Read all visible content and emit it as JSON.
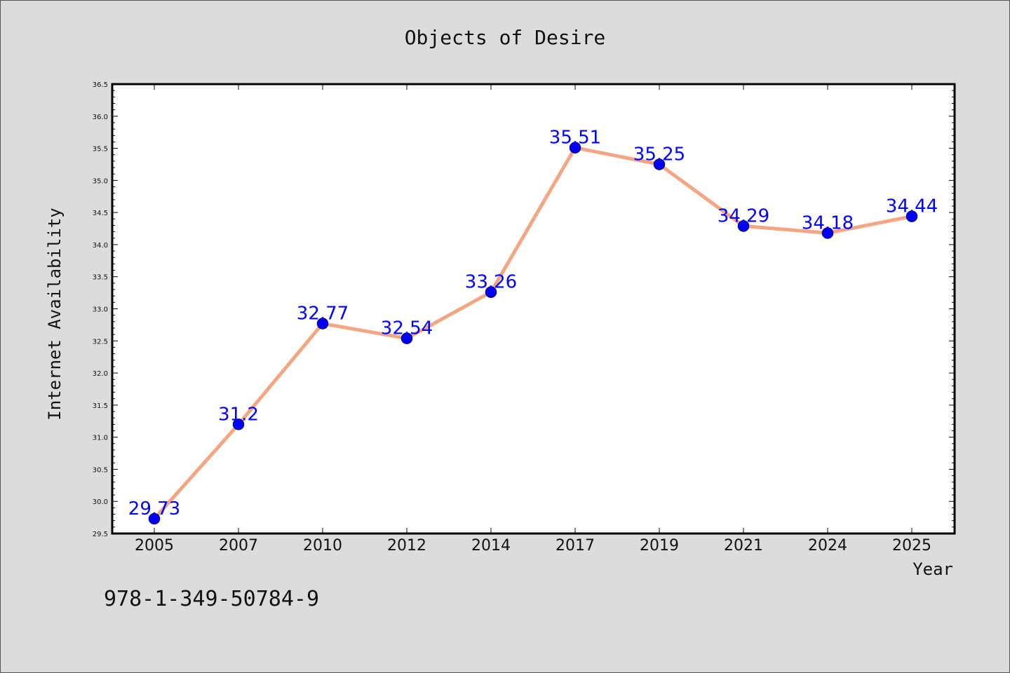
{
  "chart_data": {
    "type": "line",
    "title": "Objects of Desire",
    "xlabel": "Year",
    "ylabel": "Internet Availability",
    "categories": [
      "2005",
      "2007",
      "2010",
      "2012",
      "2014",
      "2017",
      "2019",
      "2021",
      "2024",
      "2025"
    ],
    "values": [
      29.73,
      31.2,
      32.77,
      32.54,
      33.26,
      35.51,
      35.25,
      34.29,
      34.18,
      34.44
    ],
    "data_labels": [
      "29.73",
      "31.2",
      "32.77",
      "32.54",
      "33.26",
      "35.51",
      "35.25",
      "34.29",
      "34.18",
      "34.44"
    ],
    "ylim": [
      29.5,
      36.5
    ],
    "yticks": [
      "29.5",
      "30.0",
      "30.5",
      "31.0",
      "31.5",
      "32.0",
      "32.5",
      "33.0",
      "33.5",
      "34.0",
      "34.5",
      "35.0",
      "35.5",
      "36.0",
      "36.5"
    ],
    "grid": false,
    "legend": "none",
    "colors": {
      "line": "#f4a582",
      "marker": "#0000ff",
      "marker_edge": "#00008b",
      "data_label": "#0000ff",
      "background": "#dcdcdc",
      "plot_background": "#ffffff"
    }
  },
  "footer": {
    "isbn": "978-1-349-50784-9"
  }
}
